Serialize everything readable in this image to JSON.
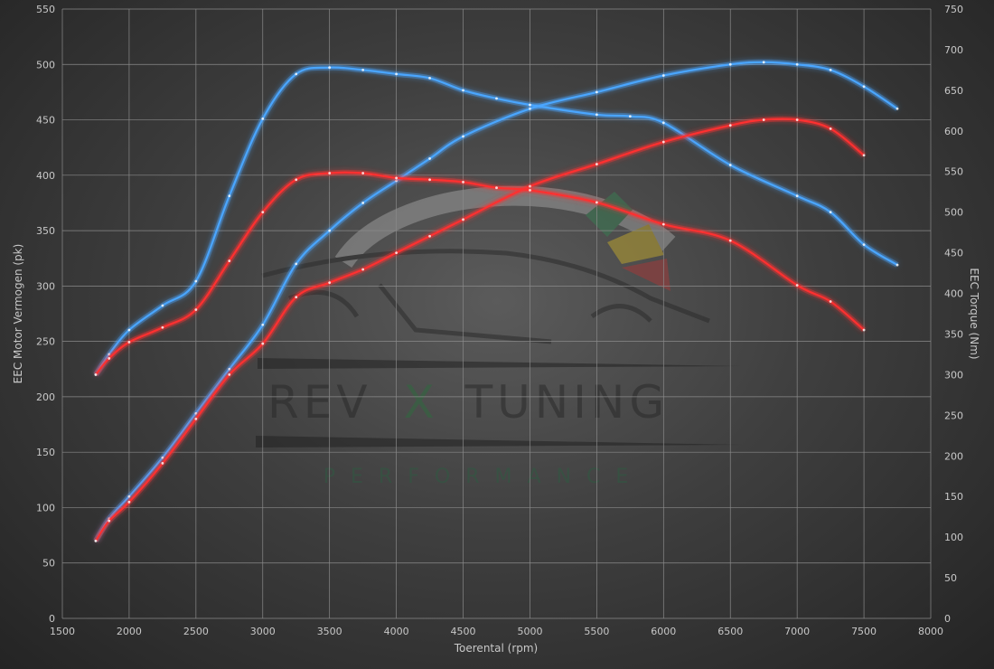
{
  "chart_data": {
    "type": "line",
    "xlabel": "Toerental (rpm)",
    "ylabel": "EEC Motor Vermogen (pk)",
    "y2label": "EEC Torque (Nm)",
    "xlim": [
      1500,
      8000
    ],
    "ylim": [
      0,
      550
    ],
    "y2lim": [
      0,
      750
    ],
    "x_ticks": [
      1500,
      2000,
      2500,
      3000,
      3500,
      4000,
      4500,
      5000,
      5500,
      6000,
      6500,
      7000,
      7500,
      8000
    ],
    "y_ticks": [
      0,
      50,
      100,
      150,
      200,
      250,
      300,
      350,
      400,
      450,
      500,
      550
    ],
    "y2_ticks": [
      0,
      50,
      100,
      150,
      200,
      250,
      300,
      350,
      400,
      450,
      500,
      550,
      600,
      650,
      700,
      750
    ],
    "grid": true,
    "series": [
      {
        "color": "#4aa6ff",
        "axis": "left",
        "x": [
          1750,
          1850,
          2000,
          2250,
          2500,
          2750,
          3000,
          3250,
          3500,
          3750,
          4000,
          4250,
          4500,
          5000,
          5500,
          6000,
          6500,
          6750,
          7000,
          7250,
          7500,
          7750
        ],
        "values": [
          70,
          90,
          110,
          145,
          185,
          225,
          265,
          320,
          350,
          375,
          395,
          415,
          435,
          460,
          475,
          490,
          500,
          502,
          500,
          495,
          480,
          460
        ]
      },
      {
        "color": "#4aa6ff",
        "axis": "right",
        "x": [
          1750,
          1850,
          2000,
          2250,
          2500,
          2750,
          3000,
          3250,
          3500,
          3750,
          4000,
          4250,
          4500,
          4750,
          5000,
          5500,
          5750,
          6000,
          6500,
          7000,
          7250,
          7500,
          7750
        ],
        "values": [
          300,
          325,
          355,
          385,
          415,
          520,
          615,
          670,
          678,
          675,
          670,
          665,
          650,
          640,
          632,
          620,
          618,
          610,
          558,
          520,
          500,
          460,
          435
        ]
      },
      {
        "color": "#ff3030",
        "axis": "left",
        "x": [
          1750,
          1850,
          2000,
          2250,
          2500,
          2750,
          3000,
          3250,
          3500,
          3750,
          4000,
          4250,
          4500,
          5000,
          5500,
          6000,
          6500,
          6750,
          7000,
          7250,
          7500
        ],
        "values": [
          70,
          88,
          105,
          140,
          180,
          220,
          248,
          290,
          303,
          315,
          330,
          345,
          360,
          390,
          410,
          430,
          445,
          450,
          450,
          442,
          418
        ]
      },
      {
        "color": "#ff3030",
        "axis": "right",
        "x": [
          1750,
          1850,
          2000,
          2250,
          2500,
          2750,
          3000,
          3250,
          3500,
          3750,
          4000,
          4250,
          4500,
          4750,
          5000,
          5500,
          6000,
          6500,
          7000,
          7250,
          7500
        ],
        "values": [
          300,
          320,
          340,
          358,
          380,
          440,
          500,
          540,
          548,
          548,
          542,
          540,
          537,
          530,
          527,
          512,
          485,
          465,
          410,
          390,
          355
        ]
      }
    ]
  },
  "watermark": {
    "brand_left": "REV",
    "brand_mid": "X",
    "brand_right": "TUNING",
    "tagline": "PERFORMANCE"
  }
}
